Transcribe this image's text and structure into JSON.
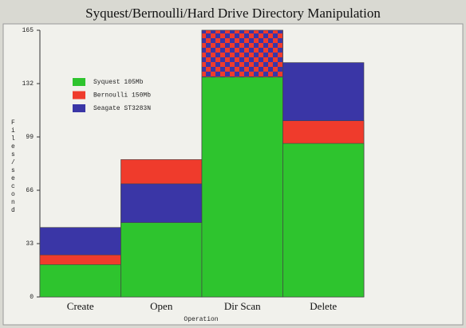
{
  "chart_data": {
    "type": "bar",
    "mode": "overlap",
    "title": "Syquest/Bernoulli/Hard Drive Directory Manipulation",
    "x_label": "Operation",
    "y_label": "Files/second",
    "categories": [
      "Create",
      "Open",
      "Dir Scan",
      "Delete"
    ],
    "series": [
      {
        "name": "Syquest 105Mb",
        "color": "#2ec42e",
        "values": [
          20,
          46,
          136,
          95
        ]
      },
      {
        "name": "Bernoulli 150Mb",
        "color": "#ef3b2c",
        "values": [
          26,
          85,
          165,
          109
        ]
      },
      {
        "name": "Seagate ST3283N",
        "color": "#3a36a6",
        "values": [
          43,
          70,
          165,
          145
        ]
      }
    ],
    "ylim": [
      0,
      165
    ],
    "yticks": [
      0,
      33,
      66,
      99,
      132,
      165
    ],
    "grid": false,
    "legend": "upper left"
  }
}
